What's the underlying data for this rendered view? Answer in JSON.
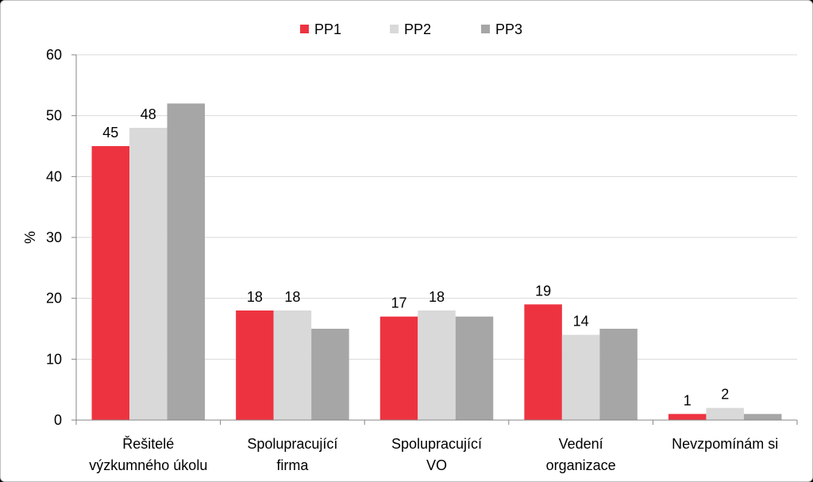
{
  "chart_data": {
    "type": "bar",
    "categories": [
      [
        "Řešitelé",
        "výzkumného úkolu"
      ],
      [
        "Spolupracující",
        "firma"
      ],
      [
        "Spolupracující",
        "VO"
      ],
      [
        "Vedení",
        "organizace"
      ],
      [
        "Nevzpomínám si"
      ]
    ],
    "series": [
      {
        "name": "PP1",
        "color": "#ee3340",
        "values": [
          45,
          18,
          17,
          19,
          1
        ],
        "labels": [
          "45",
          "18",
          "17",
          "19",
          "1"
        ]
      },
      {
        "name": "PP2",
        "color": "#d9d9d9",
        "values": [
          48,
          18,
          18,
          14,
          2
        ],
        "labels": [
          "48",
          "18",
          "18",
          "14",
          "2"
        ]
      },
      {
        "name": "PP3",
        "color": "#a6a6a6",
        "values": [
          52,
          15,
          17,
          15,
          1
        ],
        "labels": [
          "",
          "",
          "",
          "",
          ""
        ]
      }
    ],
    "ylabel": "%",
    "ylim": [
      0,
      60
    ],
    "yticks": [
      0,
      10,
      20,
      30,
      40,
      50,
      60
    ],
    "grid": true,
    "legend": "top-center"
  }
}
